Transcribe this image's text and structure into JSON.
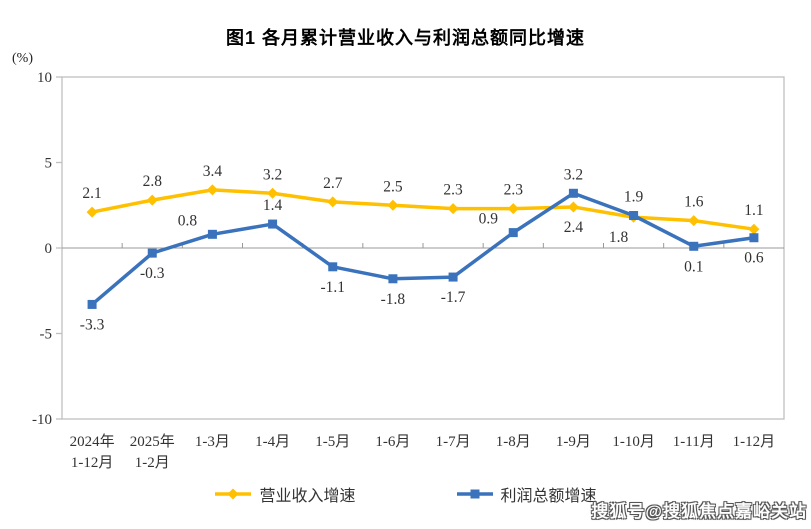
{
  "title": "图1  各月累计营业收入与利润总额同比增速",
  "y_axis_unit": "(%)",
  "watermark": "搜狐号@搜狐焦点嘉峪关站",
  "chart_data": {
    "type": "line",
    "title": "图1  各月累计营业收入与利润总额同比增速",
    "ylabel": "(%)",
    "xlabel": "",
    "categories": [
      [
        "2024年",
        "1-12月"
      ],
      [
        "2025年",
        "1-2月"
      ],
      [
        "1-3月"
      ],
      [
        "1-4月"
      ],
      [
        "1-5月"
      ],
      [
        "1-6月"
      ],
      [
        "1-7月"
      ],
      [
        "1-8月"
      ],
      [
        "1-9月"
      ],
      [
        "1-10月"
      ],
      [
        "1-11月"
      ],
      [
        "1-12月"
      ]
    ],
    "series": [
      {
        "id": "revenue-growth",
        "name": "营业收入增速",
        "color": "#FFC000",
        "marker": "diamond",
        "values": [
          2.1,
          2.8,
          3.4,
          3.2,
          2.7,
          2.5,
          2.3,
          2.3,
          2.4,
          1.8,
          1.6,
          1.1
        ],
        "label_pos": [
          "above",
          "above",
          "above",
          "above",
          "above",
          "above",
          "above",
          "above",
          "below",
          "below-left",
          "above",
          "above"
        ]
      },
      {
        "id": "profit-growth",
        "name": "利润总额增速",
        "color": "#3A73BC",
        "marker": "square",
        "values": [
          -3.3,
          -0.3,
          0.8,
          1.4,
          -1.1,
          -1.8,
          -1.7,
          0.9,
          3.2,
          1.9,
          0.1,
          0.6
        ],
        "label_pos": [
          "below",
          "below",
          "above-left",
          "above",
          "below",
          "below",
          "below",
          "above-left",
          "above",
          "above",
          "below",
          "below"
        ]
      }
    ],
    "ylim": [
      -10,
      10
    ],
    "yticks": [
      10,
      5,
      0,
      -5,
      -10
    ],
    "grid": false,
    "legend_position": "bottom",
    "axis_color": "#bfbfbf",
    "zero_line_color": "#999999",
    "text_color": "#333333"
  }
}
